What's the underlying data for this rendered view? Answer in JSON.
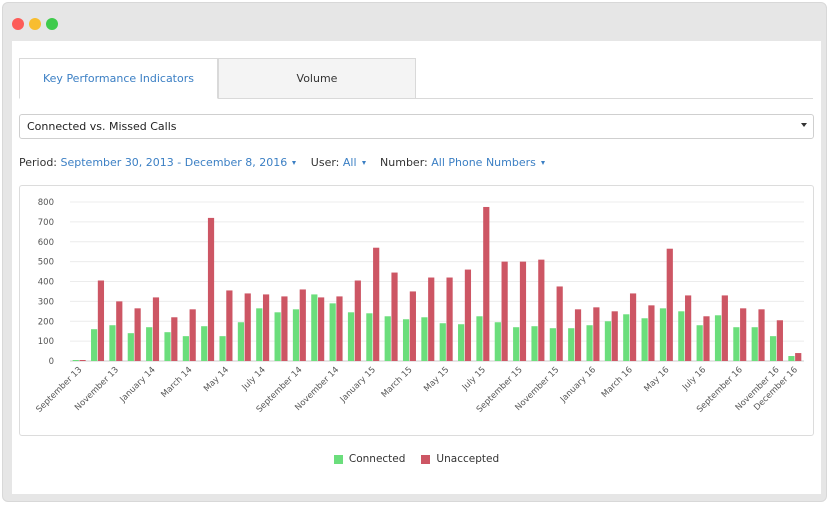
{
  "tabs": [
    {
      "label": "Key Performance Indicators",
      "active": true
    },
    {
      "label": "Volume",
      "active": false
    }
  ],
  "report_select": {
    "value": "Connected vs. Missed Calls"
  },
  "filters": {
    "period_label": "Period:",
    "period_value": "September 30, 2013 - December 8, 2016",
    "user_label": "User:",
    "user_value": "All",
    "number_label": "Number:",
    "number_value": "All Phone Numbers"
  },
  "colors": {
    "connected": "#6bde7c",
    "unaccepted": "#cd5664",
    "accent": "#3b7fc4"
  },
  "chart_data": {
    "type": "bar",
    "ylim": [
      0,
      800
    ],
    "yticks": [
      0,
      100,
      200,
      300,
      400,
      500,
      600,
      700,
      800
    ],
    "grid": true,
    "legend_position": "bottom",
    "categories": [
      "Sep 13",
      "Oct 13",
      "Nov 13",
      "Dec 13",
      "Jan 14",
      "Feb 14",
      "Mar 14",
      "Apr 14",
      "May 14",
      "Jun 14",
      "Jul 14",
      "Aug 14",
      "Sep 14",
      "Oct 14",
      "Nov 14",
      "Dec 14",
      "Jan 15",
      "Feb 15",
      "Mar 15",
      "Apr 15",
      "May 15",
      "Jun 15",
      "Jul 15",
      "Aug 15",
      "Sep 15",
      "Oct 15",
      "Nov 15",
      "Dec 15",
      "Jan 16",
      "Feb 16",
      "Mar 16",
      "Apr 16",
      "May 16",
      "Jun 16",
      "Jul 16",
      "Aug 16",
      "Sep 16",
      "Oct 16",
      "Nov 16",
      "Dec 16"
    ],
    "xtick_labels": [
      {
        "index": 0,
        "label": "September 13"
      },
      {
        "index": 2,
        "label": "November 13"
      },
      {
        "index": 4,
        "label": "January 14"
      },
      {
        "index": 6,
        "label": "March 14"
      },
      {
        "index": 8,
        "label": "May 14"
      },
      {
        "index": 10,
        "label": "July 14"
      },
      {
        "index": 12,
        "label": "September 14"
      },
      {
        "index": 14,
        "label": "November 14"
      },
      {
        "index": 16,
        "label": "January 15"
      },
      {
        "index": 18,
        "label": "March 15"
      },
      {
        "index": 20,
        "label": "May 15"
      },
      {
        "index": 22,
        "label": "July 15"
      },
      {
        "index": 24,
        "label": "September 15"
      },
      {
        "index": 26,
        "label": "November 15"
      },
      {
        "index": 28,
        "label": "January 16"
      },
      {
        "index": 30,
        "label": "March 16"
      },
      {
        "index": 32,
        "label": "May 16"
      },
      {
        "index": 34,
        "label": "July 16"
      },
      {
        "index": 36,
        "label": "September 16"
      },
      {
        "index": 38,
        "label": "November 16"
      },
      {
        "index": 39,
        "label": "December 16"
      }
    ],
    "series": [
      {
        "name": "Connected",
        "values": [
          5,
          160,
          180,
          140,
          170,
          145,
          125,
          175,
          125,
          195,
          265,
          245,
          260,
          335,
          290,
          245,
          240,
          225,
          210,
          220,
          190,
          185,
          225,
          195,
          170,
          175,
          165,
          165,
          180,
          200,
          235,
          215,
          265,
          250,
          180,
          230,
          170,
          170,
          125,
          25
        ]
      },
      {
        "name": "Unaccepted",
        "values": [
          5,
          405,
          300,
          265,
          320,
          220,
          260,
          720,
          355,
          340,
          335,
          325,
          360,
          320,
          325,
          405,
          570,
          445,
          350,
          420,
          420,
          460,
          775,
          500,
          500,
          510,
          375,
          260,
          270,
          250,
          340,
          280,
          565,
          330,
          225,
          330,
          265,
          260,
          205,
          40
        ]
      }
    ]
  }
}
